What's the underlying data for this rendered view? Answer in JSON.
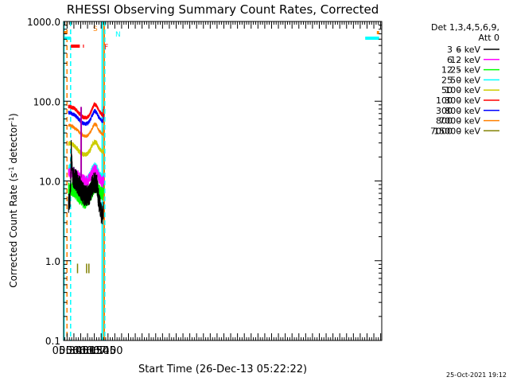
{
  "chart_data": {
    "type": "line",
    "title": "RHESSI Observing Summary Count Rates, Corrected",
    "xlabel": "Start Time (26-Dec-13 05:22:22)",
    "ylabel_main": "Corrected Count Rate (s",
    "ylabel_sup1": "-1",
    "ylabel_mid": " detector",
    "ylabel_sup2": "-1",
    "ylabel_end": ")",
    "yscale": "log",
    "ylim": [
      0.1,
      1000
    ],
    "xlim_min": [
      322.4,
      1022.4
    ],
    "xticks": [
      {
        "label": "05:30",
        "min": 330
      },
      {
        "label": "05:45",
        "min": 345
      },
      {
        "label": "06:00",
        "min": 360
      },
      {
        "label": "06:15",
        "min": 375
      },
      {
        "label": "06:30",
        "min": 390
      },
      {
        "label": "06:45",
        "min": 405
      },
      {
        "label": "07:00",
        "min": 420
      }
    ],
    "yticks": [
      {
        "label": "1000.0",
        "value": 1000
      },
      {
        "label": "100.0",
        "value": 100
      },
      {
        "label": "10.0",
        "value": 10
      },
      {
        "label": "1.0",
        "value": 1
      },
      {
        "label": "0.1",
        "value": 0.1
      }
    ],
    "legend": {
      "placement": "right",
      "header1": "Det 1,3,4,5,6,9,",
      "header2": "Att 0",
      "entries": [
        {
          "lo": "3",
          "hi": "6 keV",
          "color": "#000000"
        },
        {
          "lo": "6",
          "hi": "12 keV",
          "color": "#ff00ff"
        },
        {
          "lo": "12",
          "hi": "25 keV",
          "color": "#00ff00"
        },
        {
          "lo": "25",
          "hi": "50 keV",
          "color": "#00ffff"
        },
        {
          "lo": "50",
          "hi": "100 keV",
          "color": "#cccc00"
        },
        {
          "lo": "100",
          "hi": "300 keV",
          "color": "#ff0000"
        },
        {
          "lo": "300",
          "hi": "800 keV",
          "color": "#0000ff"
        },
        {
          "lo": "800",
          "hi": "7000 keV",
          "color": "#ff8000"
        },
        {
          "lo": "7000",
          "hi": "15000 keV",
          "color": "#808000"
        }
      ]
    },
    "flags": [
      {
        "label": "S",
        "color": "#ff8000",
        "segments": [
          [
            322.4,
            329.8
          ],
          [
            1011.6,
            1016.6
          ]
        ]
      },
      {
        "label": "N",
        "color": "#00ffff",
        "segments": [
          [
            322.4,
            338.0
          ],
          [
            986.0,
            1016.6
          ]
        ]
      },
      {
        "label": "F",
        "color": "#ff0000",
        "segments": [
          [
            338.5,
            358.0
          ],
          [
            365.0,
            367.0
          ]
        ]
      }
    ],
    "vertical_markers": [
      {
        "min": 323.0,
        "color": "#00ffff",
        "style": "solid"
      },
      {
        "min": 329.8,
        "color": "#ff8000",
        "style": "dashed"
      },
      {
        "min": 337.8,
        "color": "#00ffff",
        "style": "dashed"
      },
      {
        "min": 407.5,
        "color": "#00ffff",
        "style": "solid"
      },
      {
        "min": 411.5,
        "color": "#ff8000",
        "style": "solid"
      },
      {
        "min": 413.0,
        "color": "#00ffff",
        "style": "dashed"
      }
    ],
    "series": [
      {
        "name": "3 - 6 keV",
        "color": "#000000",
        "noise": 0.14,
        "points": [
          [
            333,
            5
          ],
          [
            336,
            5.2
          ],
          [
            338,
            10
          ],
          [
            339,
            25
          ],
          [
            340,
            19
          ],
          [
            342,
            12
          ],
          [
            345,
            11
          ],
          [
            350,
            10
          ],
          [
            355,
            9
          ],
          [
            360,
            8
          ],
          [
            365,
            7
          ],
          [
            370,
            6.5
          ],
          [
            375,
            6.5
          ],
          [
            380,
            7
          ],
          [
            385,
            8.5
          ],
          [
            390,
            9.5
          ],
          [
            395,
            9.5
          ],
          [
            397,
            8
          ],
          [
            399,
            6
          ],
          [
            402,
            5
          ],
          [
            405,
            4
          ],
          [
            408,
            3.8
          ],
          [
            410,
            4
          ]
        ]
      },
      {
        "name": "6 - 12 keV",
        "color": "#ff00ff",
        "noise": 0.07,
        "points": [
          [
            333,
            13
          ],
          [
            336,
            13
          ],
          [
            338,
            12
          ],
          [
            340,
            13
          ],
          [
            345,
            12.5
          ],
          [
            350,
            12
          ],
          [
            355,
            11.5
          ],
          [
            360,
            11
          ],
          [
            365,
            10.5
          ],
          [
            370,
            10
          ],
          [
            375,
            10
          ],
          [
            380,
            11
          ],
          [
            385,
            12.5
          ],
          [
            390,
            14
          ],
          [
            395,
            13.5
          ],
          [
            400,
            11
          ],
          [
            405,
            10
          ],
          [
            409,
            9.5
          ],
          [
            411,
            11
          ]
        ]
      },
      {
        "name": "12 - 25 keV",
        "color": "#00ff00",
        "noise": 0.09,
        "points": [
          [
            333,
            8
          ],
          [
            336,
            8
          ],
          [
            340,
            8
          ],
          [
            345,
            7.5
          ],
          [
            350,
            7
          ],
          [
            355,
            6.5
          ],
          [
            360,
            6
          ],
          [
            365,
            5.5
          ],
          [
            370,
            5.5
          ],
          [
            375,
            5.8
          ],
          [
            380,
            6.5
          ],
          [
            385,
            7.5
          ],
          [
            390,
            8.5
          ],
          [
            395,
            8.5
          ],
          [
            400,
            7.5
          ],
          [
            405,
            7
          ],
          [
            409,
            7
          ],
          [
            411,
            8
          ]
        ]
      },
      {
        "name": "25 - 50 keV",
        "color": "#00ffff",
        "noise": 0.06,
        "points": [
          [
            333,
            14
          ],
          [
            336,
            14.5
          ],
          [
            340,
            14
          ],
          [
            345,
            13
          ],
          [
            350,
            12
          ],
          [
            355,
            11
          ],
          [
            360,
            10.5
          ],
          [
            365,
            10
          ],
          [
            370,
            10
          ],
          [
            375,
            10.5
          ],
          [
            380,
            11.5
          ],
          [
            385,
            13.5
          ],
          [
            390,
            15
          ],
          [
            395,
            14.5
          ],
          [
            400,
            12
          ],
          [
            405,
            11
          ],
          [
            409,
            10.5
          ],
          [
            411,
            12
          ]
        ]
      },
      {
        "name": "50 - 100 keV",
        "color": "#cccc00",
        "noise": 0.03,
        "points": [
          [
            333,
            29
          ],
          [
            336,
            30
          ],
          [
            340,
            29
          ],
          [
            345,
            28
          ],
          [
            350,
            26
          ],
          [
            355,
            24
          ],
          [
            360,
            22.5
          ],
          [
            365,
            21.5
          ],
          [
            370,
            21.5
          ],
          [
            375,
            22
          ],
          [
            380,
            24
          ],
          [
            385,
            28
          ],
          [
            390,
            31
          ],
          [
            395,
            30
          ],
          [
            400,
            26
          ],
          [
            405,
            24
          ],
          [
            409,
            23
          ],
          [
            411,
            26
          ]
        ]
      },
      {
        "name": "100 - 300 keV",
        "color": "#ff0000",
        "noise": 0.025,
        "points": [
          [
            333,
            85
          ],
          [
            336,
            86
          ],
          [
            340,
            84
          ],
          [
            345,
            82
          ],
          [
            350,
            78
          ],
          [
            355,
            72
          ],
          [
            360,
            67
          ],
          [
            365,
            63
          ],
          [
            370,
            62
          ],
          [
            375,
            63
          ],
          [
            380,
            68
          ],
          [
            385,
            80
          ],
          [
            390,
            92
          ],
          [
            395,
            88
          ],
          [
            400,
            76
          ],
          [
            405,
            70
          ],
          [
            409,
            66
          ],
          [
            411,
            88
          ]
        ]
      },
      {
        "name": "300 - 800 keV",
        "color": "#0000ff",
        "noise": 0.025,
        "points": [
          [
            333,
            72
          ],
          [
            336,
            72
          ],
          [
            340,
            70
          ],
          [
            345,
            68
          ],
          [
            350,
            65
          ],
          [
            355,
            60
          ],
          [
            360,
            56
          ],
          [
            365,
            53
          ],
          [
            370,
            52
          ],
          [
            375,
            53
          ],
          [
            380,
            57
          ],
          [
            385,
            66
          ],
          [
            390,
            76
          ],
          [
            395,
            72
          ],
          [
            400,
            63
          ],
          [
            405,
            58
          ],
          [
            409,
            55
          ],
          [
            411,
            72
          ]
        ]
      },
      {
        "name": "800 - 7000 keV",
        "color": "#ff8000",
        "noise": 0.02,
        "points": [
          [
            333,
            50
          ],
          [
            336,
            50
          ],
          [
            340,
            49
          ],
          [
            345,
            47
          ],
          [
            350,
            45
          ],
          [
            355,
            42
          ],
          [
            360,
            39
          ],
          [
            365,
            37
          ],
          [
            370,
            36.5
          ],
          [
            375,
            37
          ],
          [
            380,
            40
          ],
          [
            385,
            45
          ],
          [
            390,
            52
          ],
          [
            395,
            50
          ],
          [
            400,
            43
          ],
          [
            405,
            40
          ],
          [
            409,
            38
          ],
          [
            411,
            50
          ]
        ]
      },
      {
        "name": "7000 - 15000 keV",
        "color": "#808000",
        "noise": 0,
        "points": [
          [
            353,
            0.8
          ],
          [
            373,
            0.8
          ],
          [
            378,
            0.8
          ]
        ]
      }
    ],
    "spike": {
      "min": 361.0,
      "color": "#aa00aa",
      "value": 85
    },
    "footer_timestamp": "25-Oct-2021 19:12"
  }
}
